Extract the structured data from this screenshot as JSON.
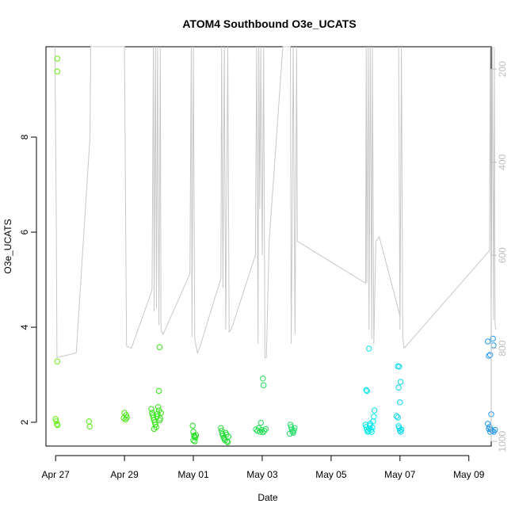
{
  "chart_data": {
    "type": "scatter",
    "title": "ATOM4 Southbound O3e_UCATS",
    "xlabel": "Date",
    "ylabel": "O3e_UCATS",
    "xlim": [
      -0.28,
      12.65
    ],
    "ylim": [
      1.5,
      9.9
    ],
    "y_ticks": [
      2,
      4,
      6,
      8
    ],
    "x_ticks": [
      {
        "day": 0,
        "label": "Apr 27"
      },
      {
        "day": 2,
        "label": "Apr 29"
      },
      {
        "day": 4,
        "label": "May 01"
      },
      {
        "day": 6,
        "label": "May 03"
      },
      {
        "day": 8,
        "label": "May 05"
      },
      {
        "day": 10,
        "label": "May 07"
      },
      {
        "day": 12,
        "label": "May 09"
      }
    ],
    "y2_ticks": [
      200,
      400,
      600,
      800,
      1000
    ],
    "y2lim": [
      1010,
      152
    ],
    "y2_color": "#bdbdbd",
    "pressure_color": "#c8c8c8",
    "points": [
      {
        "x": 0.05,
        "y": 9.65,
        "c": "#66ee11"
      },
      {
        "x": 0.05,
        "y": 9.38,
        "c": "#66ee11"
      },
      {
        "x": 0.05,
        "y": 3.28,
        "c": "#66ee11"
      },
      {
        "x": 0.0,
        "y": 2.07,
        "c": "#66ee11"
      },
      {
        "x": 0.02,
        "y": 2.02,
        "c": "#66ee11"
      },
      {
        "x": 0.04,
        "y": 1.96,
        "c": "#66ee11"
      },
      {
        "x": 0.06,
        "y": 1.94,
        "c": "#66ee11"
      },
      {
        "x": 0.97,
        "y": 2.02,
        "c": "#55ee11"
      },
      {
        "x": 0.99,
        "y": 1.91,
        "c": "#55ee11"
      },
      {
        "x": 2.0,
        "y": 2.2,
        "c": "#44e811"
      },
      {
        "x": 2.05,
        "y": 2.15,
        "c": "#44e811"
      },
      {
        "x": 1.98,
        "y": 2.09,
        "c": "#44e811"
      },
      {
        "x": 2.03,
        "y": 2.06,
        "c": "#44e811"
      },
      {
        "x": 2.07,
        "y": 2.1,
        "c": "#44e811"
      },
      {
        "x": 2.78,
        "y": 2.28,
        "c": "#33e615"
      },
      {
        "x": 2.8,
        "y": 2.2,
        "c": "#33e615"
      },
      {
        "x": 2.82,
        "y": 2.15,
        "c": "#33e615"
      },
      {
        "x": 2.84,
        "y": 2.1,
        "c": "#33e615"
      },
      {
        "x": 2.86,
        "y": 2.05,
        "c": "#33e615"
      },
      {
        "x": 2.88,
        "y": 2.0,
        "c": "#33e615"
      },
      {
        "x": 2.9,
        "y": 1.95,
        "c": "#33e615"
      },
      {
        "x": 2.92,
        "y": 1.9,
        "c": "#33e615"
      },
      {
        "x": 2.94,
        "y": 2.12,
        "c": "#33e615"
      },
      {
        "x": 2.96,
        "y": 2.18,
        "c": "#33e615"
      },
      {
        "x": 2.98,
        "y": 2.32,
        "c": "#33e615"
      },
      {
        "x": 3.0,
        "y": 2.25,
        "c": "#33e615"
      },
      {
        "x": 3.02,
        "y": 2.04,
        "c": "#33e615"
      },
      {
        "x": 3.04,
        "y": 2.08,
        "c": "#33e615"
      },
      {
        "x": 3.06,
        "y": 2.2,
        "c": "#33e615"
      },
      {
        "x": 2.86,
        "y": 1.86,
        "c": "#33e615"
      },
      {
        "x": 3.0,
        "y": 2.66,
        "c": "#33e615"
      },
      {
        "x": 3.02,
        "y": 3.58,
        "c": "#33e615"
      },
      {
        "x": 3.98,
        "y": 1.93,
        "c": "#22e020"
      },
      {
        "x": 4.0,
        "y": 1.8,
        "c": "#22e020"
      },
      {
        "x": 4.02,
        "y": 1.72,
        "c": "#22e020"
      },
      {
        "x": 4.04,
        "y": 1.7,
        "c": "#22e020"
      },
      {
        "x": 4.06,
        "y": 1.68,
        "c": "#22e020"
      },
      {
        "x": 4.0,
        "y": 1.62,
        "c": "#22e020"
      },
      {
        "x": 4.04,
        "y": 1.6,
        "c": "#22e020"
      },
      {
        "x": 4.08,
        "y": 1.73,
        "c": "#22e020"
      },
      {
        "x": 4.8,
        "y": 1.88,
        "c": "#22dd33"
      },
      {
        "x": 4.82,
        "y": 1.82,
        "c": "#22dd33"
      },
      {
        "x": 4.84,
        "y": 1.76,
        "c": "#22dd33"
      },
      {
        "x": 4.86,
        "y": 1.72,
        "c": "#22dd33"
      },
      {
        "x": 4.88,
        "y": 1.68,
        "c": "#22dd33"
      },
      {
        "x": 4.9,
        "y": 1.65,
        "c": "#22dd33"
      },
      {
        "x": 4.92,
        "y": 1.62,
        "c": "#22dd33"
      },
      {
        "x": 4.94,
        "y": 1.78,
        "c": "#22dd33"
      },
      {
        "x": 4.96,
        "y": 1.74,
        "c": "#22dd33"
      },
      {
        "x": 4.98,
        "y": 1.6,
        "c": "#22dd33"
      },
      {
        "x": 5.0,
        "y": 1.58,
        "c": "#22dd33"
      },
      {
        "x": 5.02,
        "y": 1.7,
        "c": "#22dd33"
      },
      {
        "x": 5.82,
        "y": 1.85,
        "c": "#22dd55"
      },
      {
        "x": 5.86,
        "y": 1.82,
        "c": "#22dd55"
      },
      {
        "x": 5.9,
        "y": 1.88,
        "c": "#22dd55"
      },
      {
        "x": 5.94,
        "y": 1.8,
        "c": "#22dd55"
      },
      {
        "x": 5.98,
        "y": 1.84,
        "c": "#22dd55"
      },
      {
        "x": 6.02,
        "y": 1.79,
        "c": "#22dd55"
      },
      {
        "x": 6.06,
        "y": 1.82,
        "c": "#22dd55"
      },
      {
        "x": 6.1,
        "y": 1.86,
        "c": "#22dd55"
      },
      {
        "x": 5.96,
        "y": 1.99,
        "c": "#22dd55"
      },
      {
        "x": 6.02,
        "y": 2.92,
        "c": "#22dd55"
      },
      {
        "x": 6.04,
        "y": 2.78,
        "c": "#22dd55"
      },
      {
        "x": 6.82,
        "y": 1.95,
        "c": "#22dd66"
      },
      {
        "x": 6.84,
        "y": 1.9,
        "c": "#22dd66"
      },
      {
        "x": 6.86,
        "y": 1.85,
        "c": "#22dd66"
      },
      {
        "x": 6.88,
        "y": 1.8,
        "c": "#22dd66"
      },
      {
        "x": 6.9,
        "y": 1.78,
        "c": "#22dd66"
      },
      {
        "x": 6.92,
        "y": 1.83,
        "c": "#22dd66"
      },
      {
        "x": 6.94,
        "y": 1.88,
        "c": "#22dd66"
      },
      {
        "x": 6.8,
        "y": 1.76,
        "c": "#22dd66"
      },
      {
        "x": 9.0,
        "y": 1.95,
        "c": "#00e8e8"
      },
      {
        "x": 9.02,
        "y": 1.9,
        "c": "#00e8e8"
      },
      {
        "x": 9.04,
        "y": 1.85,
        "c": "#00e8e8"
      },
      {
        "x": 9.06,
        "y": 1.8,
        "c": "#00e8e8"
      },
      {
        "x": 9.08,
        "y": 1.82,
        "c": "#00e8e8"
      },
      {
        "x": 9.1,
        "y": 1.87,
        "c": "#00e8e8"
      },
      {
        "x": 9.12,
        "y": 1.93,
        "c": "#00e8e8"
      },
      {
        "x": 9.14,
        "y": 1.97,
        "c": "#00e8e8"
      },
      {
        "x": 9.16,
        "y": 1.84,
        "c": "#00e8e8"
      },
      {
        "x": 9.18,
        "y": 1.8,
        "c": "#00e8e8"
      },
      {
        "x": 9.2,
        "y": 1.89,
        "c": "#00e8e8"
      },
      {
        "x": 9.22,
        "y": 2.02,
        "c": "#00e8e8"
      },
      {
        "x": 9.24,
        "y": 2.12,
        "c": "#00e8e8"
      },
      {
        "x": 9.26,
        "y": 2.25,
        "c": "#00e8e8"
      },
      {
        "x": 9.02,
        "y": 2.68,
        "c": "#00e8e8"
      },
      {
        "x": 9.04,
        "y": 2.66,
        "c": "#00e8e8"
      },
      {
        "x": 9.1,
        "y": 3.55,
        "c": "#00e8e8"
      },
      {
        "x": 9.94,
        "y": 3.18,
        "c": "#00d8ee"
      },
      {
        "x": 9.98,
        "y": 3.17,
        "c": "#00d8ee"
      },
      {
        "x": 10.02,
        "y": 2.85,
        "c": "#00d8ee"
      },
      {
        "x": 9.96,
        "y": 2.73,
        "c": "#00d8ee"
      },
      {
        "x": 10.0,
        "y": 2.42,
        "c": "#00d8ee"
      },
      {
        "x": 9.9,
        "y": 2.13,
        "c": "#00d8ee"
      },
      {
        "x": 9.94,
        "y": 2.1,
        "c": "#00d8ee"
      },
      {
        "x": 9.96,
        "y": 1.92,
        "c": "#00d8ee"
      },
      {
        "x": 9.98,
        "y": 1.88,
        "c": "#00d8ee"
      },
      {
        "x": 10.0,
        "y": 1.83,
        "c": "#00d8ee"
      },
      {
        "x": 10.02,
        "y": 1.8,
        "c": "#00d8ee"
      },
      {
        "x": 10.04,
        "y": 1.85,
        "c": "#00d8ee"
      },
      {
        "x": 12.55,
        "y": 3.7,
        "c": "#2299ee"
      },
      {
        "x": 12.7,
        "y": 3.76,
        "c": "#2299ee"
      },
      {
        "x": 12.72,
        "y": 3.62,
        "c": "#2299ee"
      },
      {
        "x": 12.62,
        "y": 3.42,
        "c": "#2299ee"
      },
      {
        "x": 12.58,
        "y": 3.4,
        "c": "#2299ee"
      },
      {
        "x": 12.65,
        "y": 2.17,
        "c": "#2299ee"
      },
      {
        "x": 12.55,
        "y": 1.97,
        "c": "#2299ee"
      },
      {
        "x": 12.6,
        "y": 1.9,
        "c": "#2299ee"
      },
      {
        "x": 12.64,
        "y": 1.85,
        "c": "#2299ee"
      },
      {
        "x": 12.68,
        "y": 1.82,
        "c": "#2299ee"
      },
      {
        "x": 12.72,
        "y": 1.8,
        "c": "#2299ee"
      },
      {
        "x": 12.76,
        "y": 1.84,
        "c": "#2299ee"
      },
      {
        "x": 12.58,
        "y": 1.86,
        "c": "#2299ee"
      },
      {
        "x": 12.62,
        "y": 1.8,
        "c": "#2299ee"
      }
    ],
    "pressure_path": [
      [
        -0.02,
        152
      ],
      [
        0.02,
        510
      ],
      [
        0.04,
        820
      ],
      [
        0.6,
        810
      ],
      [
        1.0,
        345
      ],
      [
        1.02,
        152
      ],
      [
        2.0,
        152
      ],
      [
        2.06,
        795
      ],
      [
        2.2,
        800
      ],
      [
        2.8,
        675
      ],
      [
        2.84,
        152
      ],
      [
        2.86,
        720
      ],
      [
        2.9,
        152
      ],
      [
        2.93,
        715
      ],
      [
        2.96,
        152
      ],
      [
        3.0,
        750
      ],
      [
        3.04,
        152
      ],
      [
        3.06,
        760
      ],
      [
        3.12,
        770
      ],
      [
        3.9,
        640
      ],
      [
        3.94,
        152
      ],
      [
        3.96,
        775
      ],
      [
        4.0,
        152
      ],
      [
        4.04,
        780
      ],
      [
        4.12,
        810
      ],
      [
        4.2,
        795
      ],
      [
        4.8,
        650
      ],
      [
        4.82,
        152
      ],
      [
        4.86,
        670
      ],
      [
        4.9,
        152
      ],
      [
        4.94,
        760
      ],
      [
        5.0,
        152
      ],
      [
        5.04,
        765
      ],
      [
        5.1,
        760
      ],
      [
        5.8,
        600
      ],
      [
        5.84,
        152
      ],
      [
        5.88,
        790
      ],
      [
        5.9,
        152
      ],
      [
        5.93,
        500
      ],
      [
        5.96,
        152
      ],
      [
        6.0,
        600
      ],
      [
        6.04,
        152
      ],
      [
        6.08,
        820
      ],
      [
        6.12,
        820
      ],
      [
        6.2,
        570
      ],
      [
        6.6,
        152
      ],
      [
        6.82,
        152
      ],
      [
        6.84,
        790
      ],
      [
        6.86,
        640
      ],
      [
        6.9,
        152
      ],
      [
        6.95,
        770
      ],
      [
        7.0,
        152
      ],
      [
        7.02,
        570
      ],
      [
        9.0,
        660
      ],
      [
        9.02,
        152
      ],
      [
        9.04,
        660
      ],
      [
        9.08,
        152
      ],
      [
        9.1,
        760
      ],
      [
        9.14,
        152
      ],
      [
        9.18,
        780
      ],
      [
        9.2,
        152
      ],
      [
        9.24,
        790
      ],
      [
        9.3,
        570
      ],
      [
        9.4,
        560
      ],
      [
        10.0,
        730
      ],
      [
        9.96,
        152
      ],
      [
        10.0,
        760
      ],
      [
        10.04,
        152
      ],
      [
        10.08,
        775
      ],
      [
        10.12,
        800
      ],
      [
        12.6,
        590
      ],
      [
        12.62,
        152
      ],
      [
        12.65,
        720
      ],
      [
        12.68,
        152
      ],
      [
        12.72,
        740
      ],
      [
        12.74,
        152
      ],
      [
        12.76,
        750
      ],
      [
        12.78,
        760
      ]
    ]
  }
}
